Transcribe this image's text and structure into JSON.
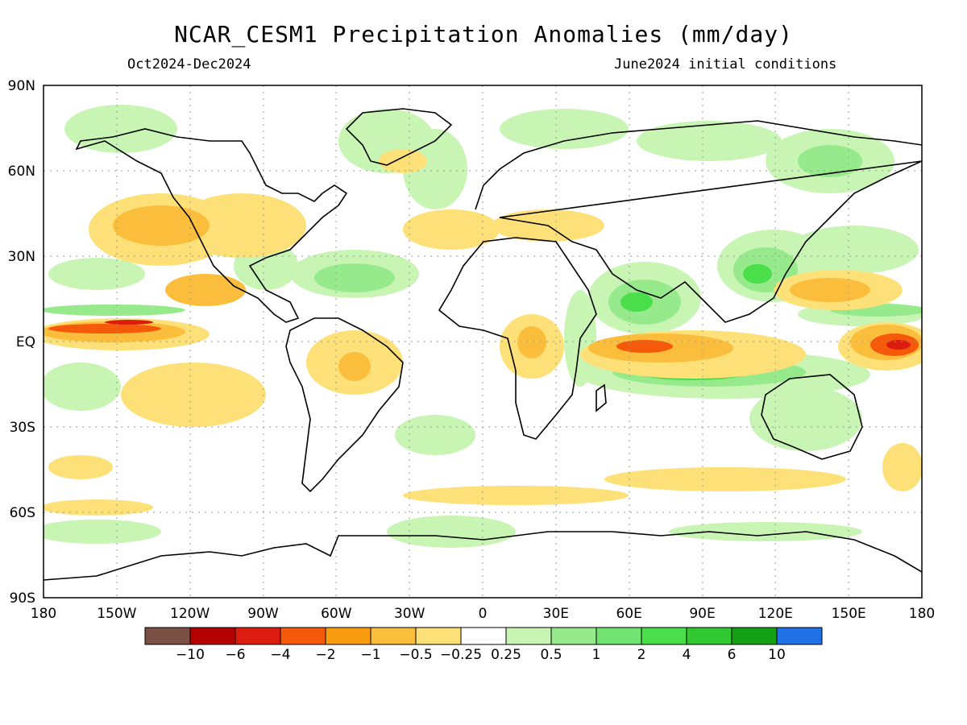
{
  "title": "NCAR_CESM1 Precipitation Anomalies (mm/day)",
  "subtitle_left": "Oct2024-Dec2024",
  "subtitle_right": "June2024 initial conditions",
  "lat_labels": [
    "90N",
    "60N",
    "30N",
    "EQ",
    "30S",
    "60S",
    "90S"
  ],
  "lon_labels": [
    "180",
    "150W",
    "120W",
    "90W",
    "60W",
    "30W",
    "0",
    "30E",
    "60E",
    "90E",
    "120E",
    "150E",
    "180"
  ],
  "colorbar": {
    "colors": [
      "#7a5045",
      "#b40000",
      "#dc1c0e",
      "#f45a0a",
      "#fa9c10",
      "#fbbd3c",
      "#fde178",
      "#ffffff",
      "#c8f5b4",
      "#96ea8c",
      "#72e472",
      "#4ade4a",
      "#32c832",
      "#14a014",
      "#2070e6"
    ],
    "labels": [
      "−10",
      "−6",
      "−4",
      "−2",
      "−1",
      "−0.5",
      "−0.25",
      "0.25",
      "0.5",
      "1",
      "2",
      "4",
      "6",
      "10"
    ]
  },
  "anomaly_colors": {
    "dry_light": "#fde178",
    "dry_moderate": "#fbbd3c",
    "dry_strong": "#f45a0a",
    "dry_extreme": "#dc1c0e",
    "wet_light": "#c8f5b4",
    "wet_moderate": "#96ea8c",
    "wet_strong": "#4ade4a"
  }
}
